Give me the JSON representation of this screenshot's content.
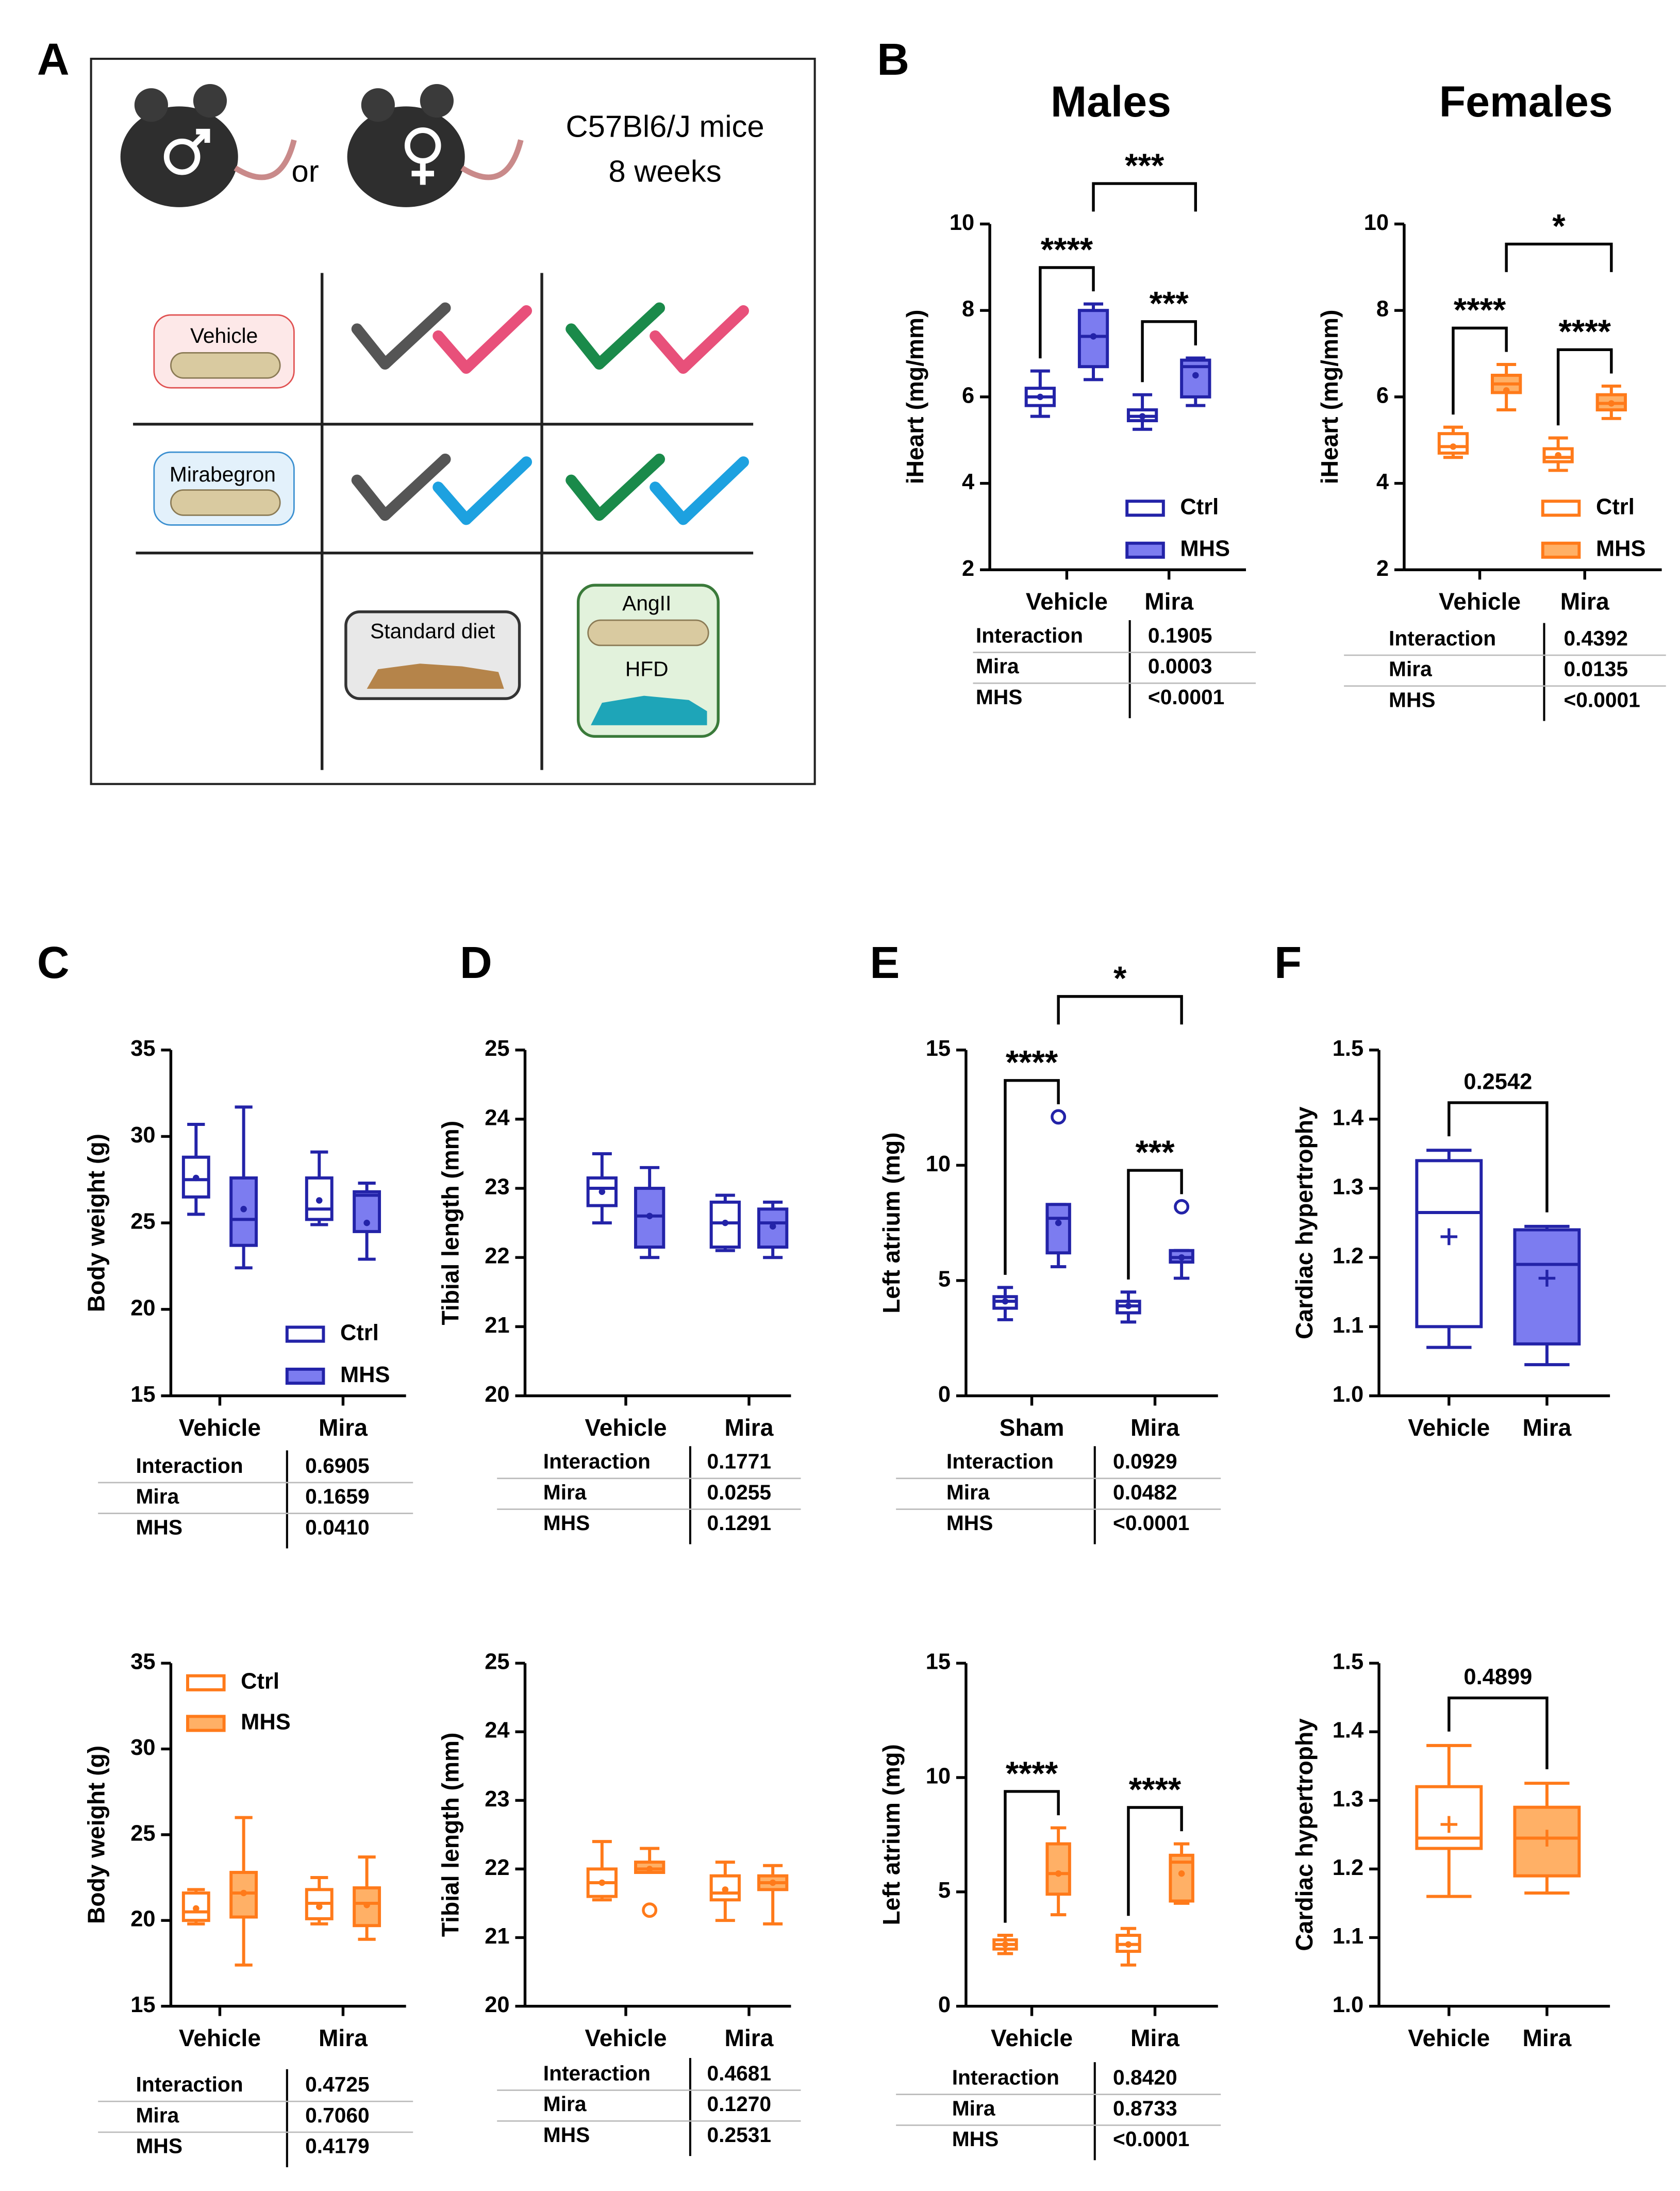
{
  "diagram": {
    "panel": "A",
    "mice": "C57Bl6/J mice",
    "age": "8 weeks",
    "or": "or",
    "vehicle": "Vehicle",
    "mirabegron": "Mirabegron",
    "standard_diet": "Standard diet",
    "angii": "AngII",
    "hfd": "HFD"
  },
  "chart_data": [
    {
      "type": "box",
      "panel": "B",
      "title": "Males",
      "ylabel": "iHeart (mg/mm)",
      "categories": [
        "Vehicle",
        "Mira"
      ],
      "ylim": [
        2,
        10
      ],
      "yticks": [
        2,
        4,
        6,
        8,
        10
      ],
      "legend": "lower right",
      "mean_marker": "dot",
      "series": [
        {
          "name": "Ctrl",
          "color": "#2323a8",
          "fill": "#ffffff",
          "boxes": [
            {
              "min": 5.55,
              "q1": 5.8,
              "median": 6.0,
              "q3": 6.2,
              "max": 6.6,
              "mean": 6.0
            },
            {
              "min": 5.25,
              "q1": 5.45,
              "median": 5.55,
              "q3": 5.7,
              "max": 6.05,
              "mean": 5.55
            }
          ]
        },
        {
          "name": "MHS",
          "color": "#2323a8",
          "fill": "#7c7cf0",
          "boxes": [
            {
              "min": 6.4,
              "q1": 6.7,
              "median": 7.4,
              "q3": 8.0,
              "max": 8.15,
              "mean": 7.4
            },
            {
              "min": 5.8,
              "q1": 6.0,
              "median": 6.7,
              "q3": 6.85,
              "max": 6.9,
              "mean": 6.5
            }
          ]
        }
      ],
      "annotations": [
        "****",
        "***",
        "***"
      ],
      "stats": [
        [
          "Interaction",
          "0.1905"
        ],
        [
          "Mira",
          "0.0003"
        ],
        [
          "MHS",
          "<0.0001"
        ]
      ]
    },
    {
      "type": "box",
      "title": "Females",
      "ylabel": "iHeart (mg/mm)",
      "categories": [
        "Vehicle",
        "Mira"
      ],
      "ylim": [
        2,
        10
      ],
      "yticks": [
        2,
        4,
        6,
        8,
        10
      ],
      "legend": "lower right",
      "mean_marker": "dot",
      "series": [
        {
          "name": "Ctrl",
          "color": "#ff7a1a",
          "fill": "#ffffff",
          "boxes": [
            {
              "min": 4.6,
              "q1": 4.7,
              "median": 4.85,
              "q3": 5.15,
              "max": 5.3,
              "mean": 4.85
            },
            {
              "min": 4.3,
              "q1": 4.5,
              "median": 4.6,
              "q3": 4.8,
              "max": 5.05,
              "mean": 4.65
            }
          ]
        },
        {
          "name": "MHS",
          "color": "#ff7a1a",
          "fill": "#ffb066",
          "boxes": [
            {
              "min": 5.7,
              "q1": 6.1,
              "median": 6.3,
              "q3": 6.5,
              "max": 6.75,
              "mean": 6.15
            },
            {
              "min": 5.5,
              "q1": 5.7,
              "median": 5.85,
              "q3": 6.05,
              "max": 6.25,
              "mean": 5.85
            }
          ]
        }
      ],
      "annotations": [
        "****",
        "****",
        "*"
      ],
      "stats": [
        [
          "Interaction",
          "0.4392"
        ],
        [
          "Mira",
          "0.0135"
        ],
        [
          "MHS",
          "<0.0001"
        ]
      ]
    },
    {
      "type": "box",
      "panel": "C",
      "ylabel": "Body weight (g)",
      "categories": [
        "Vehicle",
        "Mira"
      ],
      "ylim": [
        15,
        35
      ],
      "yticks": [
        15,
        20,
        25,
        30,
        35
      ],
      "legend": "lower right",
      "mean_marker": "dot",
      "series": [
        {
          "name": "Ctrl",
          "color": "#2323a8",
          "fill": "#ffffff",
          "boxes": [
            {
              "min": 25.5,
              "q1": 26.5,
              "median": 27.5,
              "q3": 28.8,
              "max": 30.7,
              "mean": 27.6
            },
            {
              "min": 24.9,
              "q1": 25.2,
              "median": 25.8,
              "q3": 27.6,
              "max": 29.1,
              "mean": 26.3
            }
          ]
        },
        {
          "name": "MHS",
          "color": "#2323a8",
          "fill": "#7c7cf0",
          "boxes": [
            {
              "min": 22.4,
              "q1": 23.7,
              "median": 25.2,
              "q3": 27.6,
              "max": 31.7,
              "mean": 25.8
            },
            {
              "min": 22.9,
              "q1": 24.5,
              "median": 26.6,
              "q3": 26.8,
              "max": 27.3,
              "mean": 25.0
            }
          ]
        }
      ],
      "annotations": [],
      "stats": [
        [
          "Interaction",
          "0.6905"
        ],
        [
          "Mira",
          "0.1659"
        ],
        [
          "MHS",
          "0.0410"
        ]
      ]
    },
    {
      "type": "box",
      "panel": "D",
      "ylabel": "Tibial length (mm)",
      "categories": [
        "Vehicle",
        "Mira"
      ],
      "ylim": [
        20,
        25
      ],
      "yticks": [
        20,
        21,
        22,
        23,
        24,
        25
      ],
      "mean_marker": "dot",
      "series": [
        {
          "color": "#2323a8",
          "fill": "#ffffff",
          "boxes": [
            {
              "min": 22.5,
              "q1": 22.75,
              "median": 23.0,
              "q3": 23.15,
              "max": 23.5,
              "mean": 22.95
            },
            {
              "min": 22.1,
              "q1": 22.15,
              "median": 22.5,
              "q3": 22.8,
              "max": 22.9,
              "mean": 22.5
            }
          ]
        },
        {
          "color": "#2323a8",
          "fill": "#7c7cf0",
          "boxes": [
            {
              "min": 22.0,
              "q1": 22.15,
              "median": 22.6,
              "q3": 23.0,
              "max": 23.3,
              "mean": 22.6
            },
            {
              "min": 22.0,
              "q1": 22.15,
              "median": 22.5,
              "q3": 22.7,
              "max": 22.8,
              "mean": 22.45
            }
          ]
        }
      ],
      "annotations": [],
      "stats": [
        [
          "Interaction",
          "0.1771"
        ],
        [
          "Mira",
          "0.0255"
        ],
        [
          "MHS",
          "0.1291"
        ]
      ]
    },
    {
      "type": "box",
      "panel": "E",
      "ylabel": "Left atrium (mg)",
      "categories": [
        "Sham",
        "Mira"
      ],
      "ylim": [
        0,
        15
      ],
      "yticks": [
        0,
        5,
        10,
        15
      ],
      "mean_marker": "dot",
      "series": [
        {
          "color": "#2323a8",
          "fill": "#ffffff",
          "boxes": [
            {
              "min": 3.3,
              "q1": 3.8,
              "median": 4.1,
              "q3": 4.3,
              "max": 4.7,
              "mean": 4.1
            },
            {
              "min": 3.2,
              "q1": 3.6,
              "median": 3.9,
              "q3": 4.1,
              "max": 4.5,
              "mean": 3.9
            }
          ]
        },
        {
          "color": "#2323a8",
          "fill": "#7c7cf0",
          "boxes": [
            {
              "min": 5.6,
              "q1": 6.2,
              "median": 7.7,
              "q3": 8.3,
              "max": 8.3,
              "mean": 7.5,
              "outliers": [
                12.1
              ]
            },
            {
              "min": 5.1,
              "q1": 5.8,
              "median": 6.0,
              "q3": 6.3,
              "max": 6.3,
              "mean": 6.0,
              "outliers": [
                8.2
              ]
            }
          ]
        }
      ],
      "annotations": [
        "****",
        "***",
        "*"
      ],
      "stats": [
        [
          "Interaction",
          "0.0929"
        ],
        [
          "Mira",
          "0.0482"
        ],
        [
          "MHS",
          "<0.0001"
        ]
      ]
    },
    {
      "type": "box",
      "panel": "F",
      "ylabel": "Cardiac hypertrophy",
      "categories": [
        "Vehicle",
        "Mira"
      ],
      "ylim": [
        1,
        1.5
      ],
      "yticks": [
        {
          "value": 1,
          "label": "1.0"
        },
        1.1,
        1.2,
        1.3,
        1.4,
        1.5
      ],
      "mean_marker": "plus",
      "color": "#2323a8",
      "fills": [
        "#ffffff",
        "#7c7cf0"
      ],
      "boxes": [
        {
          "min": 1.07,
          "q1": 1.1,
          "median": 1.265,
          "q3": 1.34,
          "max": 1.355,
          "mean": 1.23
        },
        {
          "min": 1.045,
          "q1": 1.075,
          "median": 1.19,
          "q3": 1.24,
          "max": 1.245,
          "mean": 1.17
        }
      ],
      "annotations": [
        "0.2542"
      ]
    },
    {
      "type": "box",
      "ylabel": "Body weight (g)",
      "categories": [
        "Vehicle",
        "Mira"
      ],
      "ylim": [
        15,
        35
      ],
      "yticks": [
        15,
        20,
        25,
        30,
        35
      ],
      "legend": "upper left",
      "mean_marker": "dot",
      "series": [
        {
          "name": "Ctrl",
          "color": "#ff7a1a",
          "fill": "#ffffff",
          "boxes": [
            {
              "min": 19.8,
              "q1": 20.0,
              "median": 20.5,
              "q3": 21.6,
              "max": 21.8,
              "mean": 20.7
            },
            {
              "min": 19.8,
              "q1": 20.1,
              "median": 21.0,
              "q3": 21.8,
              "max": 22.5,
              "mean": 20.8
            }
          ]
        },
        {
          "name": "MHS",
          "color": "#ff7a1a",
          "fill": "#ffb066",
          "boxes": [
            {
              "min": 17.4,
              "q1": 20.2,
              "median": 21.6,
              "q3": 22.8,
              "max": 26.0,
              "mean": 21.6
            },
            {
              "min": 18.9,
              "q1": 19.7,
              "median": 21.0,
              "q3": 21.9,
              "max": 23.7,
              "mean": 20.9
            }
          ]
        }
      ],
      "annotations": [],
      "stats": [
        [
          "Interaction",
          "0.4725"
        ],
        [
          "Mira",
          "0.7060"
        ],
        [
          "MHS",
          "0.4179"
        ]
      ]
    },
    {
      "type": "box",
      "ylabel": "Tibial length (mm)",
      "categories": [
        "Vehicle",
        "Mira"
      ],
      "ylim": [
        20,
        25
      ],
      "yticks": [
        20,
        21,
        22,
        23,
        24,
        25
      ],
      "mean_marker": "dot",
      "series": [
        {
          "color": "#ff7a1a",
          "fill": "#ffffff",
          "boxes": [
            {
              "min": 21.55,
              "q1": 21.6,
              "median": 21.8,
              "q3": 22.0,
              "max": 22.4,
              "mean": 21.8
            },
            {
              "min": 21.25,
              "q1": 21.55,
              "median": 21.65,
              "q3": 21.9,
              "max": 22.1,
              "mean": 21.7
            }
          ]
        },
        {
          "color": "#ff7a1a",
          "fill": "#ffb066",
          "boxes": [
            {
              "min": 21.95,
              "q1": 21.95,
              "median": 22.0,
              "q3": 22.1,
              "max": 22.3,
              "mean": 22.0,
              "outliers": [
                21.4
              ]
            },
            {
              "min": 21.2,
              "q1": 21.7,
              "median": 21.8,
              "q3": 21.9,
              "max": 22.05,
              "mean": 21.8
            }
          ]
        }
      ],
      "annotations": [],
      "stats": [
        [
          "Interaction",
          "0.4681"
        ],
        [
          "Mira",
          "0.1270"
        ],
        [
          "MHS",
          "0.2531"
        ]
      ]
    },
    {
      "type": "box",
      "ylabel": "Left atrium (mg)",
      "categories": [
        "Vehicle",
        "Mira"
      ],
      "ylim": [
        0,
        15
      ],
      "yticks": [
        0,
        5,
        10,
        15
      ],
      "mean_marker": "dot",
      "series": [
        {
          "color": "#ff7a1a",
          "fill": "#ffffff",
          "boxes": [
            {
              "min": 2.3,
              "q1": 2.5,
              "median": 2.7,
              "q3": 2.9,
              "max": 3.1,
              "mean": 2.7
            },
            {
              "min": 1.8,
              "q1": 2.4,
              "median": 2.7,
              "q3": 3.1,
              "max": 3.4,
              "mean": 2.7
            }
          ]
        },
        {
          "color": "#ff7a1a",
          "fill": "#ffb066",
          "boxes": [
            {
              "min": 4.0,
              "q1": 4.9,
              "median": 5.8,
              "q3": 7.1,
              "max": 7.8,
              "mean": 5.8
            },
            {
              "min": 4.5,
              "q1": 4.6,
              "median": 6.3,
              "q3": 6.6,
              "max": 7.1,
              "mean": 5.8
            }
          ]
        }
      ],
      "annotations": [
        "****",
        "****"
      ],
      "stats": [
        [
          "Interaction",
          "0.8420"
        ],
        [
          "Mira",
          "0.8733"
        ],
        [
          "MHS",
          "<0.0001"
        ]
      ]
    },
    {
      "type": "box",
      "ylabel": "Cardiac hypertrophy",
      "categories": [
        "Vehicle",
        "Mira"
      ],
      "ylim": [
        1,
        1.5
      ],
      "yticks": [
        {
          "value": 1,
          "label": "1.0"
        },
        1.1,
        1.2,
        1.3,
        1.4,
        1.5
      ],
      "mean_marker": "plus",
      "color": "#ff7a1a",
      "fills": [
        "#ffffff",
        "#ffb066"
      ],
      "boxes": [
        {
          "min": 1.16,
          "q1": 1.23,
          "median": 1.245,
          "q3": 1.32,
          "max": 1.38,
          "mean": 1.265
        },
        {
          "min": 1.165,
          "q1": 1.19,
          "median": 1.245,
          "q3": 1.29,
          "max": 1.325,
          "mean": 1.245
        }
      ],
      "annotations": [
        "0.4899"
      ]
    }
  ]
}
